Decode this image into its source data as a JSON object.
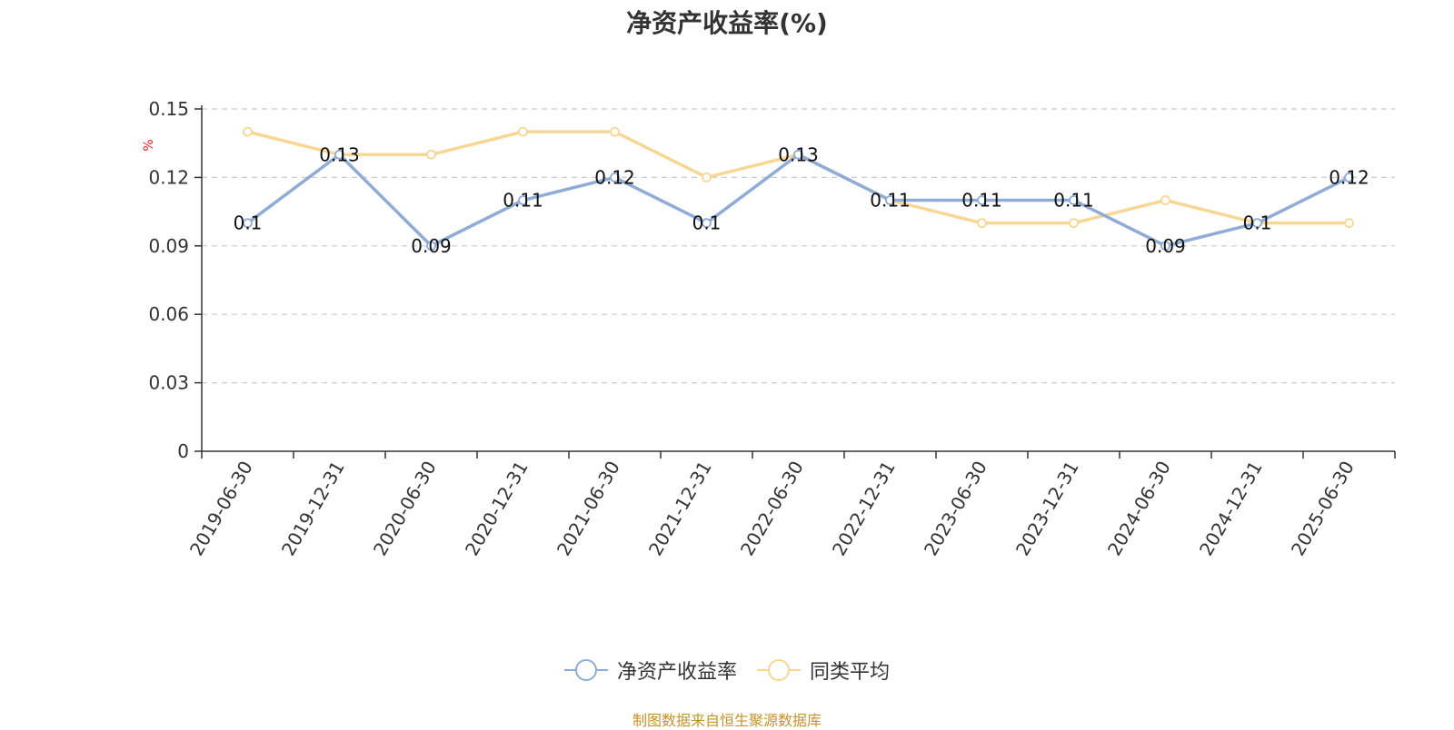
{
  "title": "净资产收益率(%)",
  "source": "制图数据来自恒生聚源数据库",
  "colors": {
    "series1": "#8eacd6",
    "series2": "#f8d694",
    "axis": "#333333",
    "grid": "#cccccc",
    "unit": "#e02020"
  },
  "chart_data": {
    "type": "line",
    "title": "净资产收益率(%)",
    "ylabel": "%",
    "ylim": [
      0,
      0.15
    ],
    "yticks": [
      "0",
      "0.03",
      "0.06",
      "0.09",
      "0.12",
      "0.15"
    ],
    "grid": true,
    "legend_position": "bottom",
    "categories": [
      "2019-06-30",
      "2019-12-31",
      "2020-06-30",
      "2020-12-31",
      "2021-06-30",
      "2021-12-31",
      "2022-06-30",
      "2022-12-31",
      "2023-06-30",
      "2023-12-31",
      "2024-06-30",
      "2024-12-31",
      "2025-06-30"
    ],
    "series": [
      {
        "name": "净资产收益率",
        "values": [
          0.1,
          0.13,
          0.09,
          0.11,
          0.12,
          0.1,
          0.13,
          0.11,
          0.11,
          0.11,
          0.09,
          0.1,
          0.12
        ],
        "labels": [
          "0.1",
          "0.13",
          "0.09",
          "0.11",
          "0.12",
          "0.1",
          "0.13",
          "0.11",
          "0.11",
          "0.11",
          "0.09",
          "0.1",
          "0.12"
        ]
      },
      {
        "name": "同类平均",
        "values": [
          0.14,
          0.13,
          0.13,
          0.14,
          0.14,
          0.12,
          0.13,
          0.11,
          0.1,
          0.1,
          0.11,
          0.1,
          0.1
        ]
      }
    ]
  }
}
